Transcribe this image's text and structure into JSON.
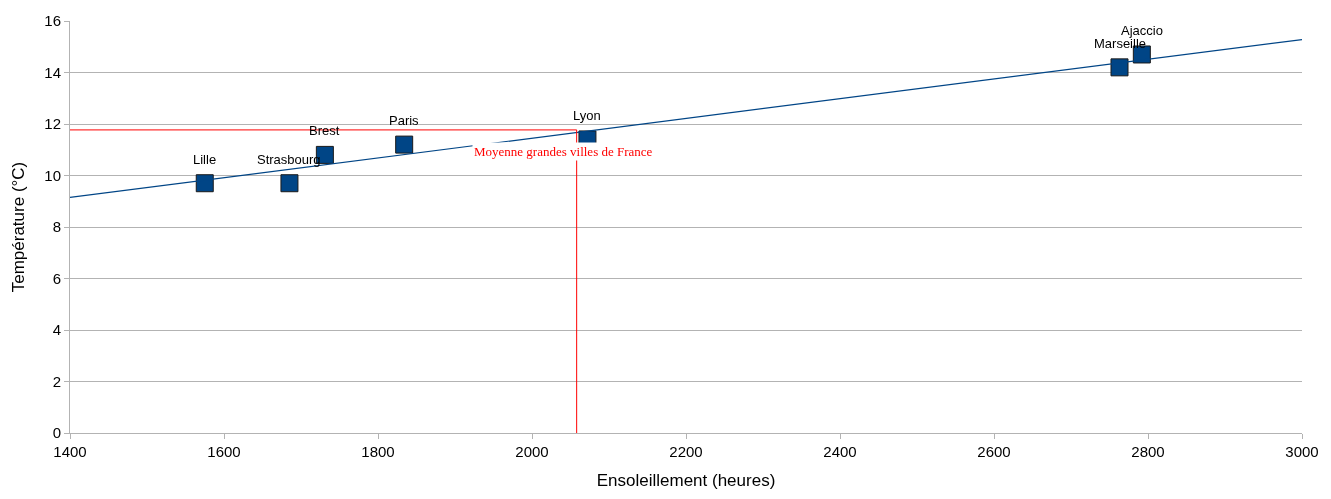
{
  "chart_data": {
    "type": "scatter",
    "xlabel": "Ensoleillement (heures)",
    "ylabel": "Température (°C)",
    "xlim": [
      1400,
      3000
    ],
    "xticks": [
      1400,
      1600,
      1800,
      2000,
      2200,
      2400,
      2600,
      2800,
      3000
    ],
    "ylim": [
      0,
      16
    ],
    "yticks": [
      0,
      2,
      4,
      6,
      8,
      10,
      12,
      14,
      16
    ],
    "grid": "y",
    "marker": "square",
    "series": [
      {
        "color": "#004586",
        "x": [
          1575,
          1685,
          1731,
          1834,
          2072,
          2763,
          2792
        ],
        "values": [
          9.7,
          9.7,
          10.8,
          11.2,
          11.4,
          14.2,
          14.7
        ]
      },
      {
        "type": "line",
        "marker": "none",
        "color": "#004586",
        "x": [
          1400,
          3000
        ],
        "values": [
          9.15,
          15.28
        ]
      }
    ],
    "annotations": [
      {
        "text": "Lille",
        "x": 1575,
        "y": 9.7
      },
      {
        "text": "Strasbourg",
        "x": 1685,
        "y": 9.7
      },
      {
        "text": "Brest",
        "x": 1731,
        "y": 10.8
      },
      {
        "text": "Paris",
        "x": 1834,
        "y": 11.2
      },
      {
        "text": "Lyon",
        "x": 2072,
        "y": 11.4
      },
      {
        "text": "Marseille",
        "x": 2763,
        "y": 14.2
      },
      {
        "text": "Ajaccio",
        "x": 2792,
        "y": 14.7
      }
    ],
    "ref_lines": [
      {
        "axis": "y",
        "value": 11.77,
        "color": "#ff0000"
      },
      {
        "axis": "x",
        "value": 2058,
        "color": "#ff0000",
        "label": "Moyenne grandes villes de France"
      }
    ]
  }
}
